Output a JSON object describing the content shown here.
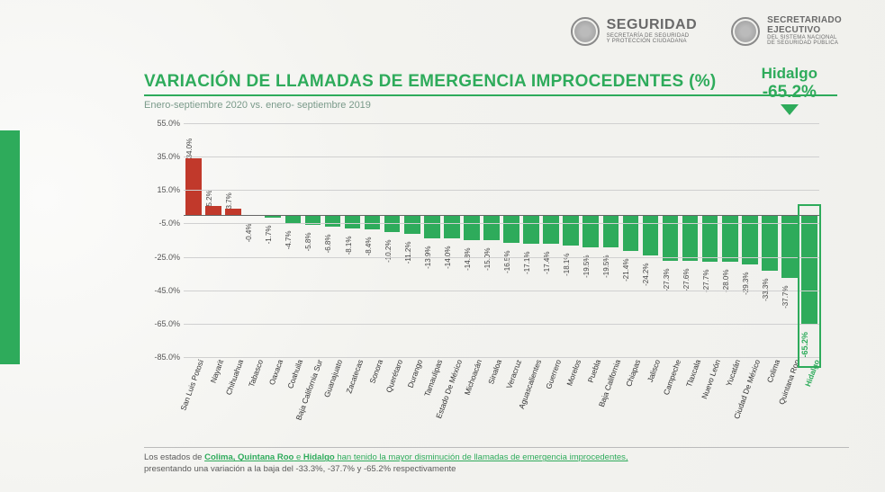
{
  "header": {
    "logo1": {
      "main": "SEGURIDAD",
      "sub1": "SECRETARÍA DE SEGURIDAD",
      "sub2": "Y PROTECCIÓN CIUDADANA"
    },
    "logo2": {
      "main1": "SECRETARIADO",
      "main2": "EJECUTIVO",
      "sub1": "DEL SISTEMA NACIONAL",
      "sub2": "DE SEGURIDAD PÚBLICA"
    }
  },
  "chart": {
    "title": "VARIACIÓN DE LLAMADAS DE EMERGENCIA IMPROCEDENTES (%)",
    "subtitle": "Enero-septiembre 2020  vs. enero- septiembre 2019",
    "type": "bar",
    "ylim": [
      -85,
      55
    ],
    "ytick_step": 20,
    "yticks": [
      55,
      35,
      15,
      -5,
      -25,
      -45,
      -65,
      -85
    ],
    "ytick_labels": [
      "55.0%",
      "35.0%",
      "15.0%",
      "-5.0%",
      "-25.0%",
      "-45.0%",
      "-65.0%",
      "-85.0%"
    ],
    "baseline": 0,
    "pos_color": "#c1392b",
    "neg_color": "#2eab5b",
    "grid_color": "#d0d0d0",
    "background_color": "#f5f5f2",
    "bar_width": 0.8,
    "label_fontsize": 8,
    "axis_fontsize": 9,
    "title_fontsize": 19,
    "title_color": "#2eab5b",
    "categories": [
      "San Luis Potosí",
      "Nayarit",
      "Chihuahua",
      "Tabasco",
      "Oaxaca",
      "Coahuila",
      "Baja California Sur",
      "Guanajuato",
      "Zacatecas",
      "Sonora",
      "Querétaro",
      "Durango",
      "Tamaulipas",
      "Estado De México",
      "Michoacán",
      "Sinaloa",
      "Veracruz",
      "Aguascalientes",
      "Guerrero",
      "Morelos",
      "Puebla",
      "Baja California",
      "Chiapas",
      "Jalisco",
      "Campeche",
      "Tlaxcala",
      "Nuevo León",
      "Yucatán",
      "Ciudad De México",
      "Colima",
      "Quintana Roo",
      "Hidalgo"
    ],
    "values": [
      34.0,
      5.2,
      3.7,
      -0.4,
      -1.7,
      -4.7,
      -5.8,
      -6.8,
      -8.1,
      -8.4,
      -10.2,
      -11.2,
      -13.9,
      -14.0,
      -14.8,
      -15.0,
      -16.5,
      -17.1,
      -17.4,
      -18.1,
      -19.5,
      -19.5,
      -21.4,
      -24.2,
      -27.3,
      -27.6,
      -27.7,
      -28.0,
      -29.3,
      -33.3,
      -37.7,
      -65.2
    ],
    "value_labels": [
      "34.0%",
      "5.2%",
      "3.7%",
      "-0.4%",
      "-1.7%",
      "-4.7%",
      "-5.8%",
      "-6.8%",
      "-8.1%",
      "-8.4%",
      "-10.2%",
      "-11.2%",
      "-13.9%",
      "-14.0%",
      "-14.8%",
      "-15.0%",
      "-16.5%",
      "-17.1%",
      "-17.4%",
      "-18.1%",
      "-19.5%",
      "-19.5%",
      "-21.4%",
      "-24.2%",
      "-27.3%",
      "-27.6%",
      "-27.7%",
      "-28.0%",
      "-29.3%",
      "-33.3%",
      "-37.7%",
      "-65.2%"
    ],
    "highlight_index": 31,
    "callout": {
      "name": "Hidalgo",
      "value": "-65.2%"
    }
  },
  "footnote": {
    "pre": "Los estados de ",
    "mid1": "Colima, Quintana Roo",
    "mid2": " e ",
    "mid3": "Hidalgo",
    "link": " han tenido la mayor disminución de llamadas de emergencia improcedentes,",
    "post": "presentando una variación a la baja del -33.3%, -37.7% y -65.2% respectivamente"
  }
}
